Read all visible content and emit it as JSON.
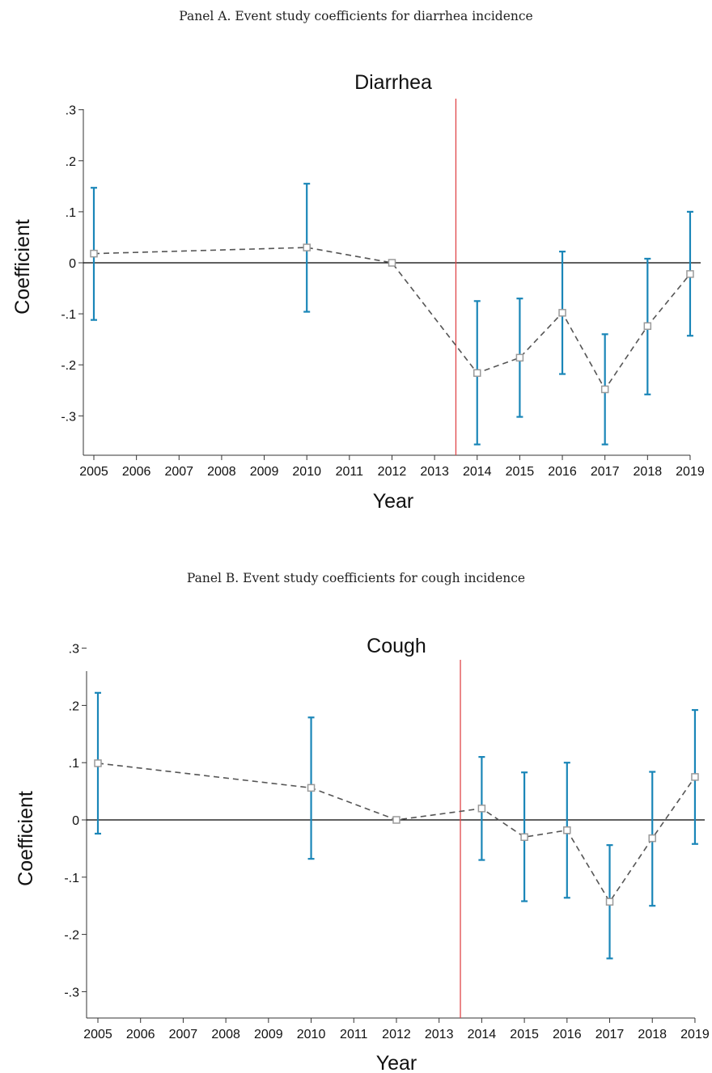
{
  "captions": {
    "panel_a": "Panel A. Event study coefficients for diarrhea incidence",
    "panel_b": "Panel B. Event study coefficients for cough incidence"
  },
  "colors": {
    "ci": "#1a86b8",
    "line": "#555555",
    "marker": "#9a9a9a",
    "event_line": "#e0474a",
    "zero_line": "#000000"
  },
  "chart_data": [
    {
      "type": "line",
      "title": "Diarrhea",
      "xlabel": "Year",
      "ylabel": "Coefficient",
      "x_ticks": [
        "2005",
        "2006",
        "2007",
        "2008",
        "2009",
        "2010",
        "2011",
        "2012",
        "2013",
        "2014",
        "2015",
        "2016",
        "2017",
        "2018",
        "2019"
      ],
      "y_ticks": [
        ".3",
        ".2",
        ".1",
        "0",
        "-.1",
        "-.2",
        "-.3"
      ],
      "ylim": [
        -0.38,
        0.3
      ],
      "event_line_x": 2013.5,
      "series": [
        {
          "x": [
            2005,
            2010,
            2012,
            2014,
            2015,
            2016,
            2017,
            2018,
            2019
          ],
          "y": [
            0.018,
            0.03,
            0.0,
            -0.216,
            -0.186,
            -0.098,
            -0.248,
            -0.124,
            -0.022
          ],
          "ci_low": [
            -0.112,
            -0.096,
            0.0,
            -0.356,
            -0.302,
            -0.218,
            -0.356,
            -0.258,
            -0.143
          ],
          "ci_high": [
            0.147,
            0.155,
            0.0,
            -0.075,
            -0.07,
            0.022,
            -0.14,
            0.008,
            0.1
          ]
        }
      ],
      "grid": false
    },
    {
      "type": "line",
      "title": "Cough",
      "xlabel": "Year",
      "ylabel": "Coefficient",
      "x_ticks": [
        "2005",
        "2006",
        "2007",
        "2008",
        "2009",
        "2010",
        "2011",
        "2012",
        "2013",
        "2014",
        "2015",
        "2016",
        "2017",
        "2018",
        "2019"
      ],
      "y_ticks": [
        ".3",
        ".2",
        ".1",
        "0",
        "-.1",
        "-.2",
        "-.3"
      ],
      "ylim": [
        -0.3,
        0.3
      ],
      "event_line_x": 2013.5,
      "series": [
        {
          "x": [
            2005,
            2010,
            2012,
            2014,
            2015,
            2016,
            2017,
            2018,
            2019
          ],
          "y": [
            0.099,
            0.056,
            0.0,
            0.02,
            -0.03,
            -0.018,
            -0.143,
            -0.032,
            0.075
          ],
          "ci_low": [
            -0.024,
            -0.068,
            0.0,
            -0.07,
            -0.142,
            -0.136,
            -0.242,
            -0.15,
            -0.042
          ],
          "ci_high": [
            0.222,
            0.179,
            0.0,
            0.11,
            0.083,
            0.1,
            -0.044,
            0.084,
            0.192
          ]
        }
      ],
      "grid": false
    }
  ]
}
